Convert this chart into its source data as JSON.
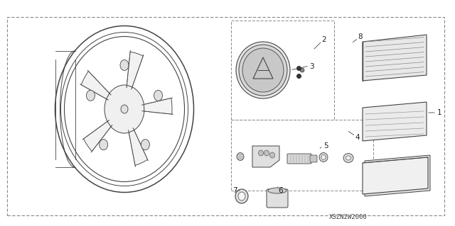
{
  "bg_color": "#ffffff",
  "line_color": "#444444",
  "label_color": "#222222",
  "title_text": "XSZN2W2000",
  "figsize": [
    6.4,
    3.19
  ],
  "dpi": 100
}
